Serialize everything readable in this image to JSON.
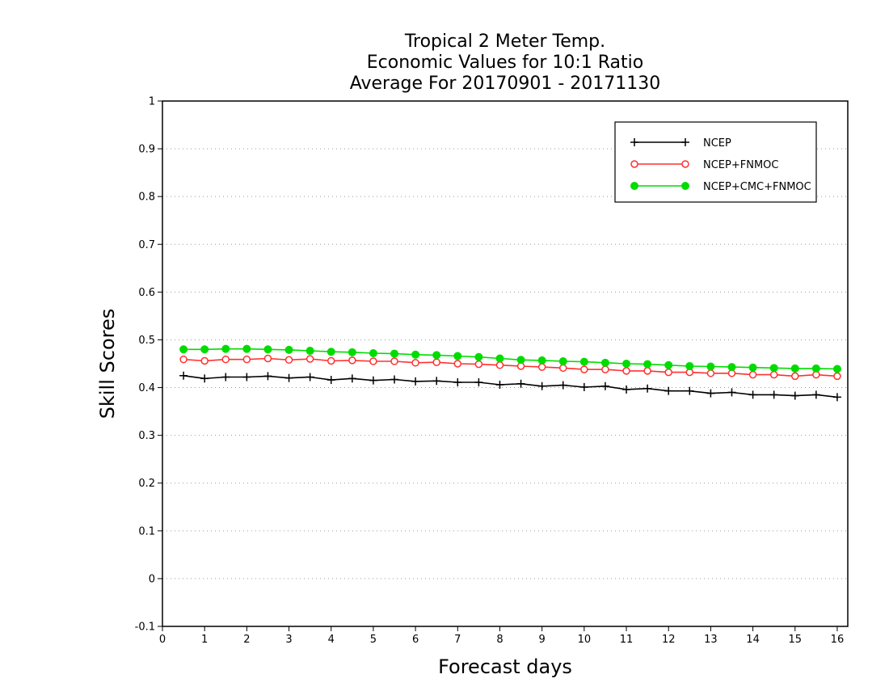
{
  "chart_data": {
    "type": "line",
    "title_lines": [
      "Tropical 2 Meter Temp.",
      "Economic Values for 10:1 Ratio",
      "Average For 20170901 - 20171130"
    ],
    "xlabel": "Forecast days",
    "ylabel": "Skill Scores",
    "xlim": [
      0,
      16.25
    ],
    "ylim": [
      -0.1,
      1
    ],
    "xticks": [
      0,
      1,
      2,
      3,
      4,
      5,
      6,
      7,
      8,
      9,
      10,
      11,
      12,
      13,
      14,
      15,
      16
    ],
    "yticks": [
      -0.1,
      0,
      0.1,
      0.2,
      0.3,
      0.4,
      0.5,
      0.6,
      0.7,
      0.8,
      0.9,
      1
    ],
    "ytick_labels": [
      "-0.1",
      "0",
      "0.1",
      "0.2",
      "0.3",
      "0.4",
      "0.5",
      "0.6",
      "0.7",
      "0.8",
      "0.9",
      "1"
    ],
    "grid": true,
    "legend_position": "top-right",
    "x": [
      0.5,
      1,
      1.5,
      2,
      2.5,
      3,
      3.5,
      4,
      4.5,
      5,
      5.5,
      6,
      6.5,
      7,
      7.5,
      8,
      8.5,
      9,
      9.5,
      10,
      10.5,
      11,
      11.5,
      12,
      12.5,
      13,
      13.5,
      14,
      14.5,
      15,
      15.5,
      16
    ],
    "series": [
      {
        "name": "NCEP",
        "color": "#000000",
        "marker": "plus",
        "values": [
          0.425,
          0.419,
          0.422,
          0.422,
          0.424,
          0.42,
          0.422,
          0.416,
          0.419,
          0.415,
          0.417,
          0.413,
          0.414,
          0.411,
          0.411,
          0.406,
          0.408,
          0.403,
          0.405,
          0.401,
          0.403,
          0.396,
          0.398,
          0.393,
          0.393,
          0.388,
          0.39,
          0.385,
          0.385,
          0.383,
          0.385,
          0.38
        ]
      },
      {
        "name": "NCEP+FNMOC",
        "color": "#ff3030",
        "marker": "open-circle",
        "values": [
          0.459,
          0.456,
          0.459,
          0.459,
          0.461,
          0.458,
          0.46,
          0.456,
          0.457,
          0.455,
          0.455,
          0.452,
          0.453,
          0.45,
          0.449,
          0.447,
          0.445,
          0.443,
          0.441,
          0.438,
          0.438,
          0.435,
          0.435,
          0.432,
          0.432,
          0.43,
          0.43,
          0.427,
          0.427,
          0.424,
          0.427,
          0.424
        ]
      },
      {
        "name": "NCEP+CMC+FNMOC",
        "color": "#00dc00",
        "marker": "filled-circle",
        "values": [
          0.48,
          0.48,
          0.481,
          0.481,
          0.48,
          0.479,
          0.477,
          0.475,
          0.474,
          0.472,
          0.471,
          0.469,
          0.468,
          0.466,
          0.464,
          0.461,
          0.458,
          0.457,
          0.455,
          0.454,
          0.452,
          0.45,
          0.449,
          0.447,
          0.445,
          0.444,
          0.443,
          0.442,
          0.441,
          0.44,
          0.44,
          0.439
        ]
      }
    ]
  }
}
